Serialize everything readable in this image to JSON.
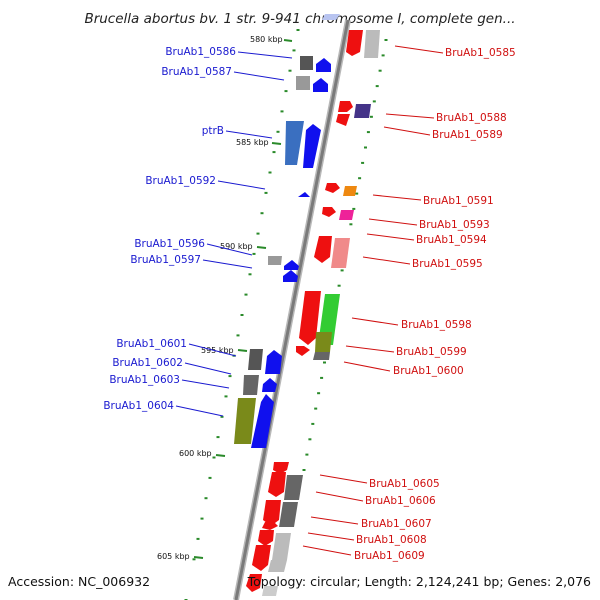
{
  "title": "Brucella abortus bv. 1 str. 9-941 chromosome I, complete gen...",
  "footer": {
    "accession": "Accession: NC_006932",
    "summary": "Topology: circular; Length: 2,124,241 bp; Genes: 2,076"
  },
  "colors": {
    "backbone": "#888888",
    "left_label": "#1a1ad0",
    "right_label": "#d01010",
    "tick": "#2a8a2a"
  },
  "scale_labels": [
    "580 kbp",
    "585 kbp",
    "590 kbp",
    "595 kbp",
    "600 kbp",
    "605 kbp"
  ],
  "left_genes": [
    {
      "id": "BruAb1_0586",
      "label": "BruAb1_0586"
    },
    {
      "id": "BruAb1_0587",
      "label": "BruAb1_0587"
    },
    {
      "id": "ptrB",
      "label": "ptrB"
    },
    {
      "id": "BruAb1_0592",
      "label": "BruAb1_0592"
    },
    {
      "id": "BruAb1_0596",
      "label": "BruAb1_0596"
    },
    {
      "id": "BruAb1_0597",
      "label": "BruAb1_0597"
    },
    {
      "id": "BruAb1_0601",
      "label": "BruAb1_0601"
    },
    {
      "id": "BruAb1_0602",
      "label": "BruAb1_0602"
    },
    {
      "id": "BruAb1_0603",
      "label": "BruAb1_0603"
    },
    {
      "id": "BruAb1_0604",
      "label": "BruAb1_0604"
    }
  ],
  "right_genes": [
    {
      "id": "BruAb1_0585",
      "label": "BruAb1_0585"
    },
    {
      "id": "BruAb1_0588",
      "label": "BruAb1_0588"
    },
    {
      "id": "BruAb1_0589",
      "label": "BruAb1_0589"
    },
    {
      "id": "BruAb1_0591",
      "label": "BruAb1_0591"
    },
    {
      "id": "BruAb1_0593",
      "label": "BruAb1_0593"
    },
    {
      "id": "BruAb1_0594",
      "label": "BruAb1_0594"
    },
    {
      "id": "BruAb1_0595",
      "label": "BruAb1_0595"
    },
    {
      "id": "BruAb1_0598",
      "label": "BruAb1_0598"
    },
    {
      "id": "BruAb1_0599",
      "label": "BruAb1_0599"
    },
    {
      "id": "BruAb1_0600",
      "label": "BruAb1_0600"
    },
    {
      "id": "BruAb1_0605",
      "label": "BruAb1_0605"
    },
    {
      "id": "BruAb1_0606",
      "label": "BruAb1_0606"
    },
    {
      "id": "BruAb1_0607",
      "label": "BruAb1_0607"
    },
    {
      "id": "BruAb1_0608",
      "label": "BruAb1_0608"
    },
    {
      "id": "BruAb1_0609",
      "label": "BruAb1_0609"
    }
  ]
}
